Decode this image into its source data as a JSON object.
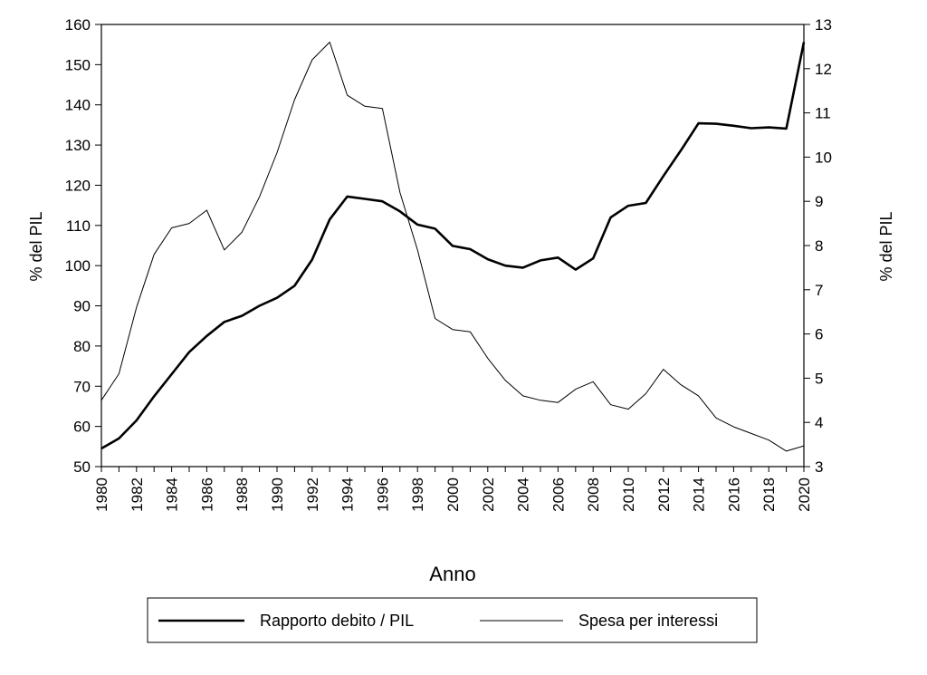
{
  "chart_data": {
    "type": "line",
    "xlabel": "Anno",
    "ylabel_left": "% del PIL",
    "ylabel_right": "% del PIL",
    "ylim_left": [
      50,
      160
    ],
    "ylim_right": [
      3,
      13
    ],
    "xlim": [
      1980,
      2020
    ],
    "yticks_left": [
      50,
      60,
      70,
      80,
      90,
      100,
      110,
      120,
      130,
      140,
      150,
      160
    ],
    "yticks_right": [
      3,
      4,
      5,
      6,
      7,
      8,
      9,
      10,
      11,
      12,
      13
    ],
    "xticks": [
      1980,
      1982,
      1984,
      1986,
      1988,
      1990,
      1992,
      1994,
      1996,
      1998,
      2000,
      2002,
      2004,
      2006,
      2008,
      2010,
      2012,
      2014,
      2016,
      2018,
      2020
    ],
    "grid": false,
    "legend_position": "bottom",
    "x": [
      1980,
      1981,
      1982,
      1983,
      1984,
      1985,
      1986,
      1987,
      1988,
      1989,
      1990,
      1991,
      1992,
      1993,
      1994,
      1995,
      1996,
      1997,
      1998,
      1999,
      2000,
      2001,
      2002,
      2003,
      2004,
      2005,
      2006,
      2007,
      2008,
      2009,
      2010,
      2011,
      2012,
      2013,
      2014,
      2015,
      2016,
      2017,
      2018,
      2019,
      2020
    ],
    "series": [
      {
        "name": "Rapporto debito / PIL",
        "axis": "left",
        "stroke": "#000000",
        "weight": "thick",
        "values": [
          54.5,
          57,
          61.5,
          67.5,
          73,
          78.5,
          82.5,
          86,
          87.5,
          90,
          92,
          95,
          101.5,
          111.5,
          117.2,
          116.6,
          116,
          113.5,
          110.2,
          109.2,
          104.9,
          104.1,
          101.6,
          100,
          99.5,
          101.3,
          102,
          99,
          101.8,
          112,
          114.9,
          115.6,
          122.3,
          128.7,
          135.4,
          135.3,
          134.8,
          134.2,
          134.4,
          134.1,
          155.6
        ]
      },
      {
        "name": "Spesa per interessi",
        "axis": "right",
        "stroke": "#000000",
        "weight": "thin",
        "values": [
          4.5,
          5.1,
          6.6,
          7.8,
          8.4,
          8.5,
          8.8,
          7.9,
          8.3,
          9.1,
          10.1,
          11.3,
          12.2,
          12.6,
          11.4,
          11.15,
          11.1,
          9.2,
          7.9,
          6.35,
          6.1,
          6.05,
          5.45,
          4.95,
          4.6,
          4.5,
          4.45,
          4.75,
          4.92,
          4.4,
          4.3,
          4.65,
          5.2,
          4.85,
          4.6,
          4.1,
          3.9,
          3.75,
          3.6,
          3.35,
          3.47
        ]
      }
    ]
  }
}
